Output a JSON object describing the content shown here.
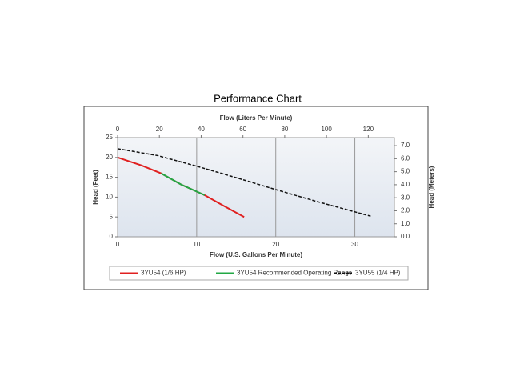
{
  "chart_data": {
    "type": "line",
    "title": "Performance Chart",
    "xlabel": "Flow (U.S. Gallons Per Minute)",
    "ylabel": "Head (Feet)",
    "x2label": "Flow (Liters Per Minute)",
    "y2label": "Head (Meters)",
    "xlim": [
      0,
      35
    ],
    "xticks": [
      0,
      10,
      20,
      30
    ],
    "ylim": [
      0,
      25
    ],
    "yticks": [
      0,
      5,
      10,
      15,
      20,
      25
    ],
    "x2lim": [
      0,
      132.5
    ],
    "x2ticks": [
      0,
      20,
      40,
      60,
      80,
      100,
      120
    ],
    "y2lim": [
      0,
      7.62
    ],
    "y2ticks": [
      {
        "value": 0,
        "label": "0.0"
      },
      {
        "value": 1,
        "label": "1.0"
      },
      {
        "value": 2,
        "label": "2.0"
      },
      {
        "value": 3,
        "label": "3.0"
      },
      {
        "value": 4,
        "label": "4.0"
      },
      {
        "value": 5,
        "label": "5.0"
      },
      {
        "value": 6,
        "label": "6.0"
      },
      {
        "value": 7,
        "label": "7.0"
      }
    ],
    "grid": "x",
    "series": [
      {
        "name": "3YU54 (1/6 HP)",
        "color": "#e02020",
        "style": "solid",
        "x": [
          0,
          3,
          5.5,
          8,
          11,
          13.5,
          16
        ],
        "values": [
          20,
          18,
          16,
          13.2,
          10.5,
          7.7,
          5
        ]
      },
      {
        "name": "3YU54 Recommended Operating Range",
        "color": "#22a845",
        "style": "solid",
        "x": [
          5.5,
          8,
          11
        ],
        "values": [
          16,
          13.2,
          10.5
        ]
      },
      {
        "name": "3YU55 (1/4 HP)",
        "color": "#111111",
        "style": "dashed",
        "x": [
          0,
          5,
          10,
          15,
          20,
          25,
          32
        ],
        "values": [
          22.2,
          20.5,
          17.8,
          14.9,
          11.9,
          9,
          5.2
        ]
      }
    ]
  }
}
